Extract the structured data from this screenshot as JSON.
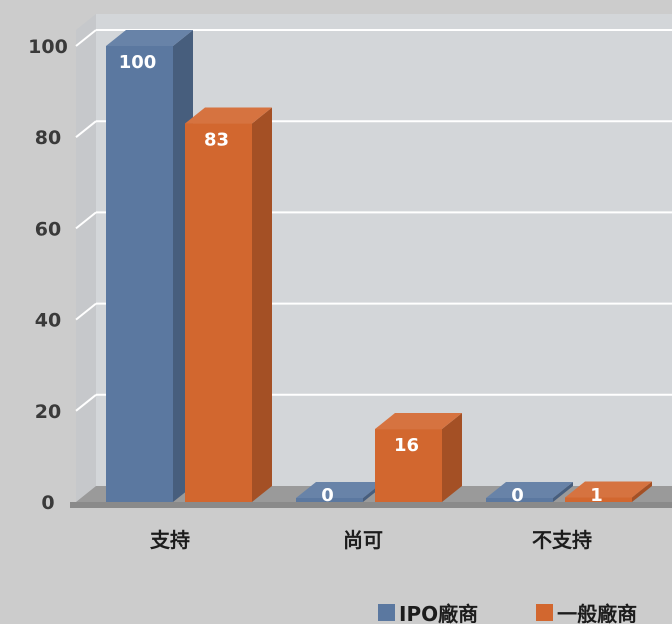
{
  "chart_data": {
    "type": "bar",
    "categories": [
      "支持",
      "尚可",
      "不支持"
    ],
    "series": [
      {
        "name": "IPO廠商",
        "values": [
          100,
          0,
          0
        ],
        "color": "#5b78a0"
      },
      {
        "name": "一般廠商",
        "values": [
          83,
          16,
          1
        ],
        "color": "#d2672f"
      }
    ],
    "ylim": [
      0,
      100
    ],
    "yticks": [
      0,
      20,
      40,
      60,
      80,
      100
    ],
    "grid": true,
    "three_d": true,
    "legend_position": "bottom-right",
    "title": "",
    "xlabel": "",
    "ylabel": ""
  }
}
